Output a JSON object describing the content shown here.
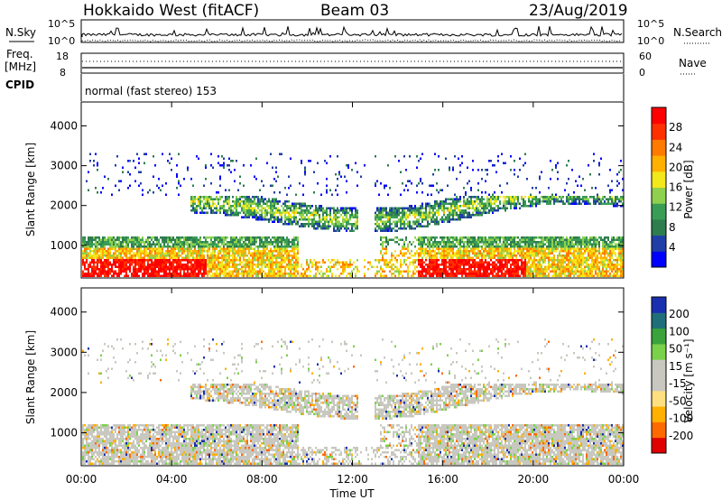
{
  "header": {
    "station": "Hokkaido West (fitACF)",
    "beam": "Beam 03",
    "date": "23/Aug/2019"
  },
  "top_panels": {
    "nsky_label": "N.Sky",
    "nsky_top": "10^5",
    "nsky_bottom": "10^0",
    "nsky_right_top": "10^5",
    "nsky_right_bottom": "10^0",
    "nsearch_label": "N.Search",
    "freq_label": "Freq.",
    "freq_unit": "[MHz]",
    "freq_top": "18",
    "freq_bottom": "8",
    "nave_label": "Nave",
    "nave_top": "60",
    "nave_bottom": "0",
    "cpid_label": "CPID",
    "cpid_text": "normal (fast stereo) 153"
  },
  "colors": {
    "power": [
      "#0000ff",
      "#1f3fa6",
      "#2e7d4f",
      "#3a9d55",
      "#8fd14f",
      "#f2e81c",
      "#ffb000",
      "#ff7a00",
      "#ff3000",
      "#ff0000"
    ],
    "velocity": [
      "#e00000",
      "#ff6a00",
      "#ffb000",
      "#ffe080",
      "#c8c8c0",
      "#c8c8c0",
      "#7ad14a",
      "#3aa33a",
      "#1f6f7a",
      "#1a2fb0"
    ]
  },
  "chart_data": [
    {
      "type": "heatmap",
      "name": "power",
      "ylabel": "Slant Range [km]",
      "yticks": [
        "1000",
        "2000",
        "3000",
        "4000"
      ],
      "ylim": [
        180,
        4600
      ],
      "xlabel": "Time UT",
      "xticks": [
        "00:00",
        "04:00",
        "08:00",
        "12:00",
        "16:00",
        "20:00",
        "00:00"
      ],
      "colorbar_label": "Power [dB]",
      "colorbar_ticks": [
        "4",
        "8",
        "12",
        "16",
        "20",
        "24",
        "28"
      ],
      "colorbar_range": [
        0,
        30
      ]
    },
    {
      "type": "heatmap",
      "name": "velocity",
      "ylabel": "Slant Range [km]",
      "yticks": [
        "1000",
        "2000",
        "3000",
        "4000"
      ],
      "ylim": [
        180,
        4600
      ],
      "xlabel": "Time UT",
      "xticks": [
        "00:00",
        "04:00",
        "08:00",
        "12:00",
        "16:00",
        "20:00",
        "00:00"
      ],
      "colorbar_label": "Velocity [m s⁻¹]",
      "colorbar_ticks": [
        "200",
        "100",
        "50",
        "15",
        "-15",
        "-50",
        "-100",
        "-200"
      ]
    }
  ]
}
